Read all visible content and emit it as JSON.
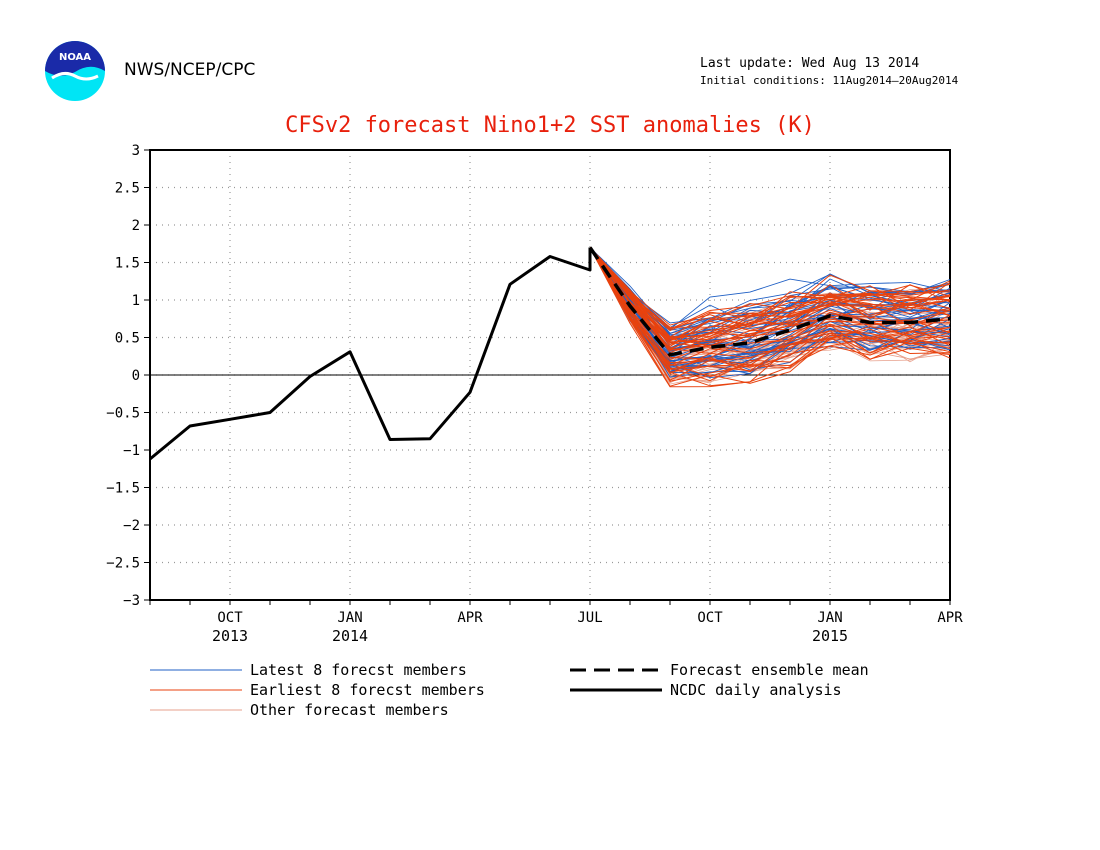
{
  "header": {
    "org": "NWS/NCEP/CPC",
    "last_update": "Last update: Wed Aug 13 2014",
    "initial_conditions": "Initial conditions: 11Aug2014—20Aug2014",
    "logo_text": "NOAA"
  },
  "chart_data": {
    "type": "line",
    "title": "CFSv2 forecast Nino1+2 SST anomalies (K)",
    "xlabel": "",
    "ylabel": "",
    "ylim": [
      -3,
      3
    ],
    "y_ticks": [
      "3",
      "2.5",
      "2",
      "1.5",
      "1",
      "0.5",
      "0",
      "−0.5",
      "−1",
      "−1.5",
      "−2",
      "−2.5",
      "−3"
    ],
    "x_ticks": [
      {
        "label": "OCT",
        "year": "2013"
      },
      {
        "label": "JAN",
        "year": "2014"
      },
      {
        "label": "APR",
        "year": ""
      },
      {
        "label": "JUL",
        "year": ""
      },
      {
        "label": "OCT",
        "year": ""
      },
      {
        "label": "JAN",
        "year": "2015"
      },
      {
        "label": "APR",
        "year": ""
      }
    ],
    "x_months": [
      "Aug 2013",
      "Sep 2013",
      "Oct 2013",
      "Nov 2013",
      "Dec 2013",
      "Jan 2014",
      "Feb 2014",
      "Mar 2014",
      "Apr 2014",
      "May 2014",
      "Jun 2014",
      "Jul 2014",
      "Aug 2014",
      "Sep 2014",
      "Oct 2014",
      "Nov 2014",
      "Dec 2014",
      "Jan 2015",
      "Feb 2015",
      "Mar 2015",
      "Apr 2015"
    ],
    "grid": true,
    "zero_line": true,
    "series": [
      {
        "name": "NCDC daily analysis",
        "color": "#000000",
        "style": "solid",
        "points": [
          [
            0,
            -1.12
          ],
          [
            1,
            -0.68
          ],
          [
            2,
            -0.59
          ],
          [
            3,
            -0.5
          ],
          [
            4,
            -0.02
          ],
          [
            5,
            0.31
          ],
          [
            6,
            -0.86
          ],
          [
            7,
            -0.85
          ],
          [
            8,
            -0.23
          ],
          [
            9,
            1.21
          ],
          [
            10,
            1.58
          ],
          [
            11,
            1.4
          ],
          [
            11.0,
            1.7
          ]
        ]
      },
      {
        "name": "Forecast ensemble mean",
        "color": "#000000",
        "style": "dashed",
        "x": [
          11,
          12,
          13,
          14,
          15,
          16,
          17,
          18,
          19,
          20
        ],
        "values": [
          1.7,
          0.92,
          0.27,
          0.37,
          0.43,
          0.6,
          0.79,
          0.7,
          0.7,
          0.75
        ]
      }
    ],
    "ensemble": {
      "x": [
        11,
        12,
        13,
        14,
        15,
        16,
        17,
        18,
        19,
        20
      ],
      "start_value": 1.7,
      "latest_members": {
        "name": "Latest 8 forecst members",
        "color": "#1f5fc4",
        "count": 40
      },
      "earliest_members": {
        "name": "Earliest 8 forecst members",
        "color": "#e8420e",
        "count": 40
      },
      "other_members": {
        "name": "Other forecast members",
        "color": "#e7a08c",
        "count": 40
      }
    },
    "legend": {
      "placement": "bottom",
      "items": [
        {
          "label": "Latest 8 forecst members",
          "color": "#1f5fc4",
          "style": "thin"
        },
        {
          "label": "Forecast ensemble mean",
          "color": "#000000",
          "style": "dashed"
        },
        {
          "label": "Earliest 8 forecst members",
          "color": "#e8420e",
          "style": "thin"
        },
        {
          "label": "NCDC daily analysis",
          "color": "#000000",
          "style": "solid"
        },
        {
          "label": "Other forecast members",
          "color": "#e7a08c",
          "style": "thin"
        }
      ]
    }
  }
}
